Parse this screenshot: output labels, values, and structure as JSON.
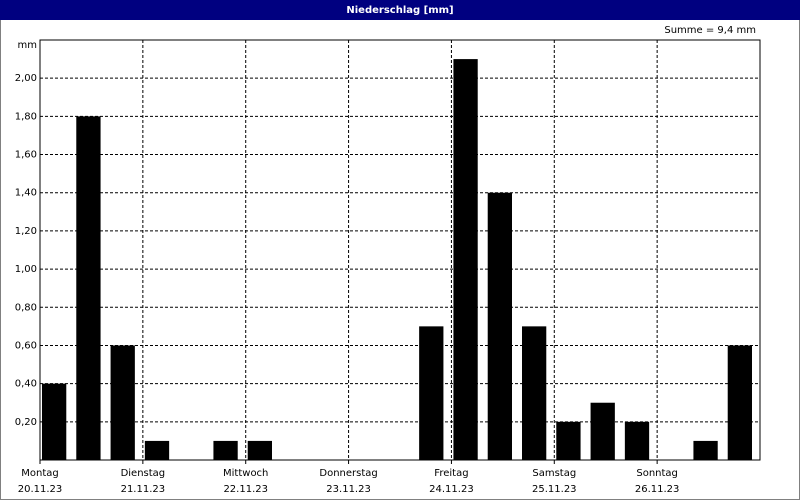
{
  "chart_data": {
    "type": "bar",
    "title": "Niederschlag [mm]",
    "annotation": "Summe = 9,4 mm",
    "y_label": "mm",
    "categories": [
      "Montag",
      null,
      null,
      "Dienstag",
      null,
      null,
      "Mittwoch",
      null,
      null,
      "Donnerstag",
      null,
      null,
      "Freitag",
      null,
      null,
      "Samstag",
      null,
      null,
      "Sonntag",
      null,
      null
    ],
    "category_dates": [
      "20.11.23",
      null,
      null,
      "21.11.23",
      null,
      null,
      "22.11.23",
      null,
      null,
      "23.11.23",
      null,
      null,
      "24.11.23",
      null,
      null,
      "25.11.23",
      null,
      null,
      "26.11.23",
      null,
      null
    ],
    "values": [
      0.4,
      1.8,
      0.6,
      0.1,
      0,
      0.1,
      0.1,
      0,
      0,
      0,
      0,
      0.7,
      2.1,
      1.4,
      0.7,
      0.2,
      0.3,
      0.2,
      0,
      0.1,
      0.6
    ],
    "color": "#000000",
    "ylim": [
      0,
      2.2
    ],
    "yticks": [
      {
        "value": 0.2,
        "label": "0,20"
      },
      {
        "value": 0.4,
        "label": "0,40"
      },
      {
        "value": 0.6,
        "label": "0,60"
      },
      {
        "value": 0.8,
        "label": "0,80"
      },
      {
        "value": 1.0,
        "label": "1,00"
      },
      {
        "value": 1.2,
        "label": "1,20"
      },
      {
        "value": 1.4,
        "label": "1,40"
      },
      {
        "value": 1.6,
        "label": "1,60"
      },
      {
        "value": 1.8,
        "label": "1,80"
      },
      {
        "value": 2.0,
        "label": "2,00"
      }
    ],
    "grid": true
  }
}
